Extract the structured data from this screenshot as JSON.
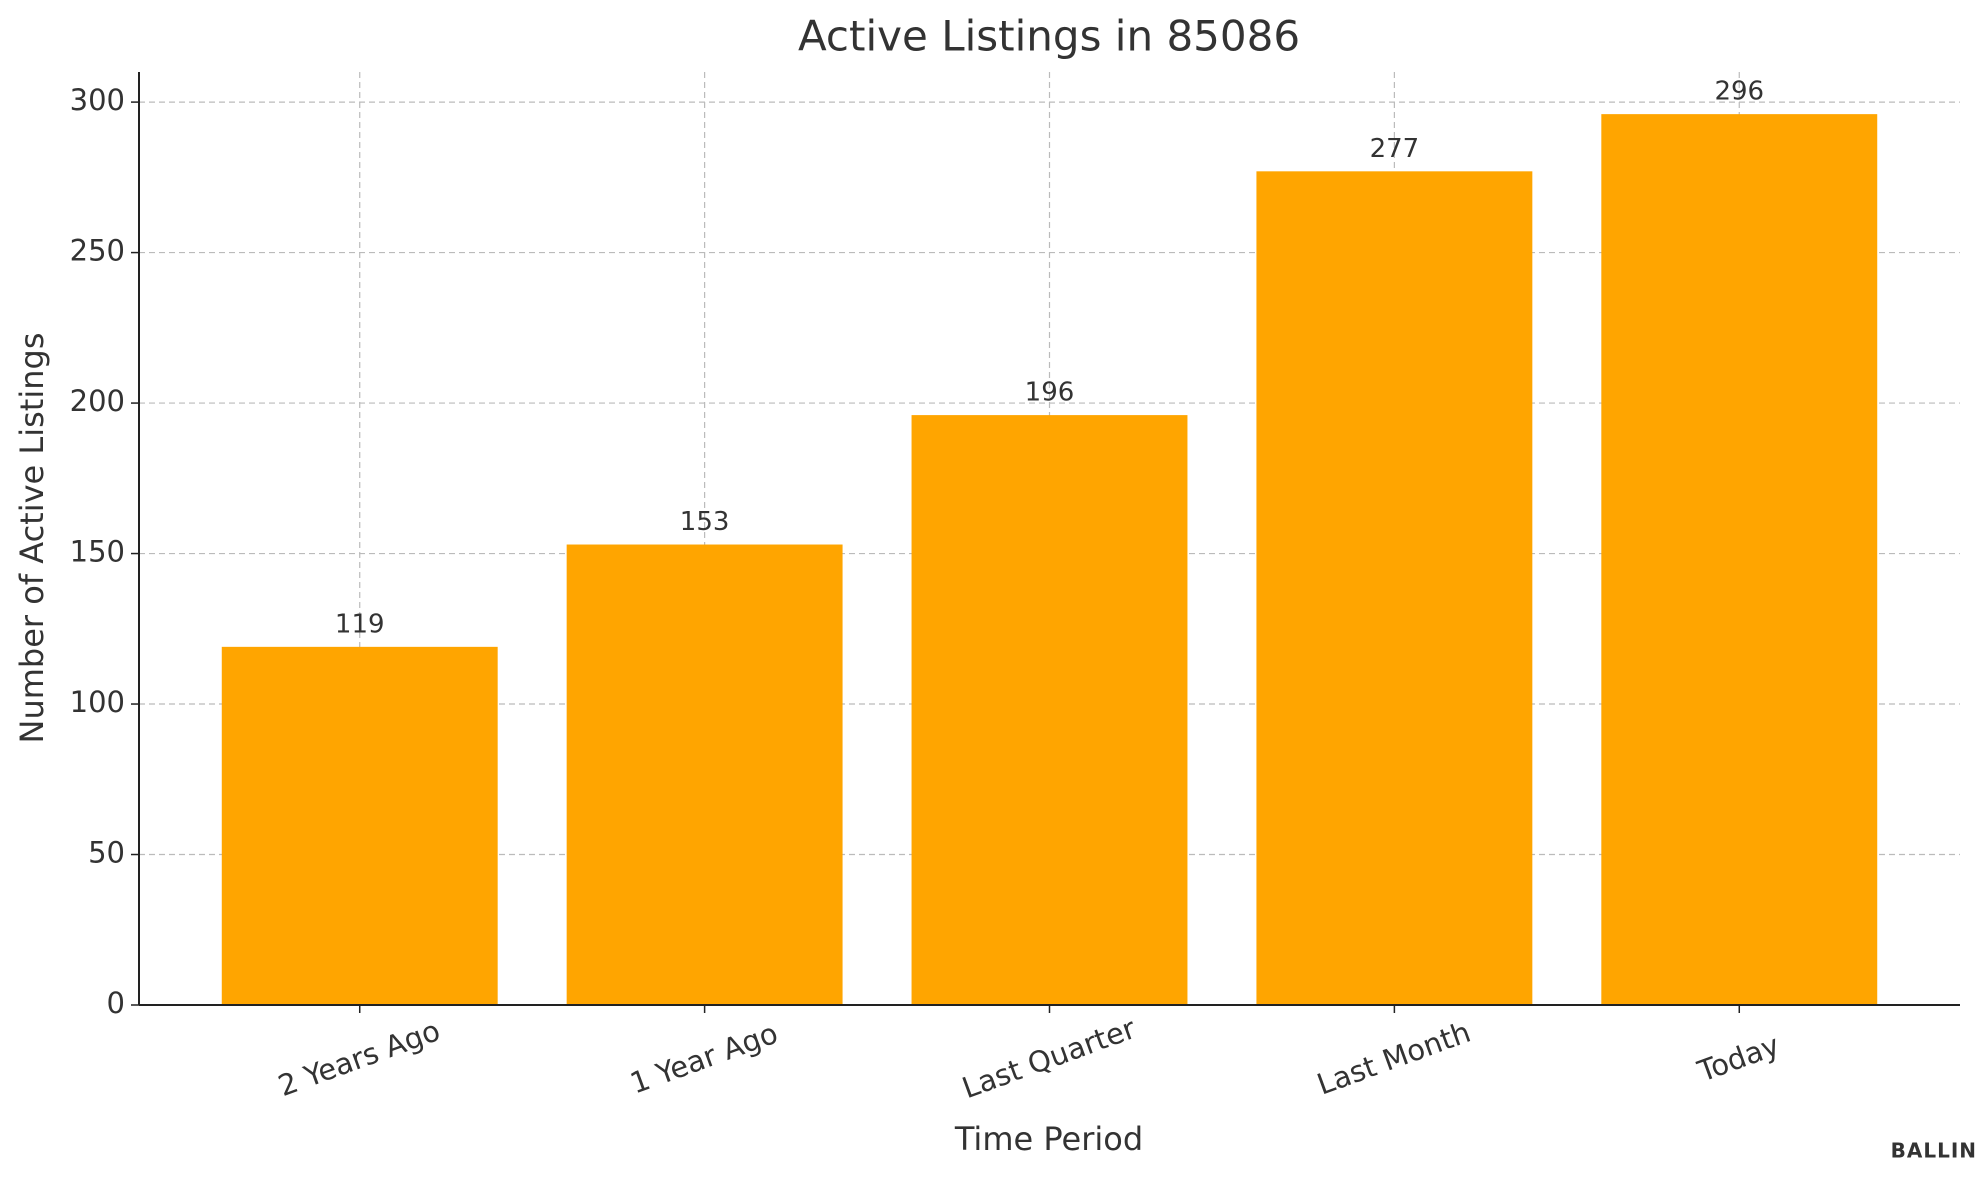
{
  "chart_data": {
    "type": "bar",
    "title": "Active Listings in 85086",
    "x_label": "Time Period",
    "y_label": "Number of Active Listings",
    "categories": [
      "2 Years Ago",
      "1 Year Ago",
      "Last Quarter",
      "Last Month",
      "Today"
    ],
    "values": [
      119,
      153,
      196,
      277,
      296
    ],
    "color": "#FFA500",
    "ylim": [
      0,
      310
    ],
    "yticks": [
      0,
      50,
      100,
      150,
      200,
      250,
      300
    ],
    "grid": true,
    "watermark": "BALLIN"
  }
}
